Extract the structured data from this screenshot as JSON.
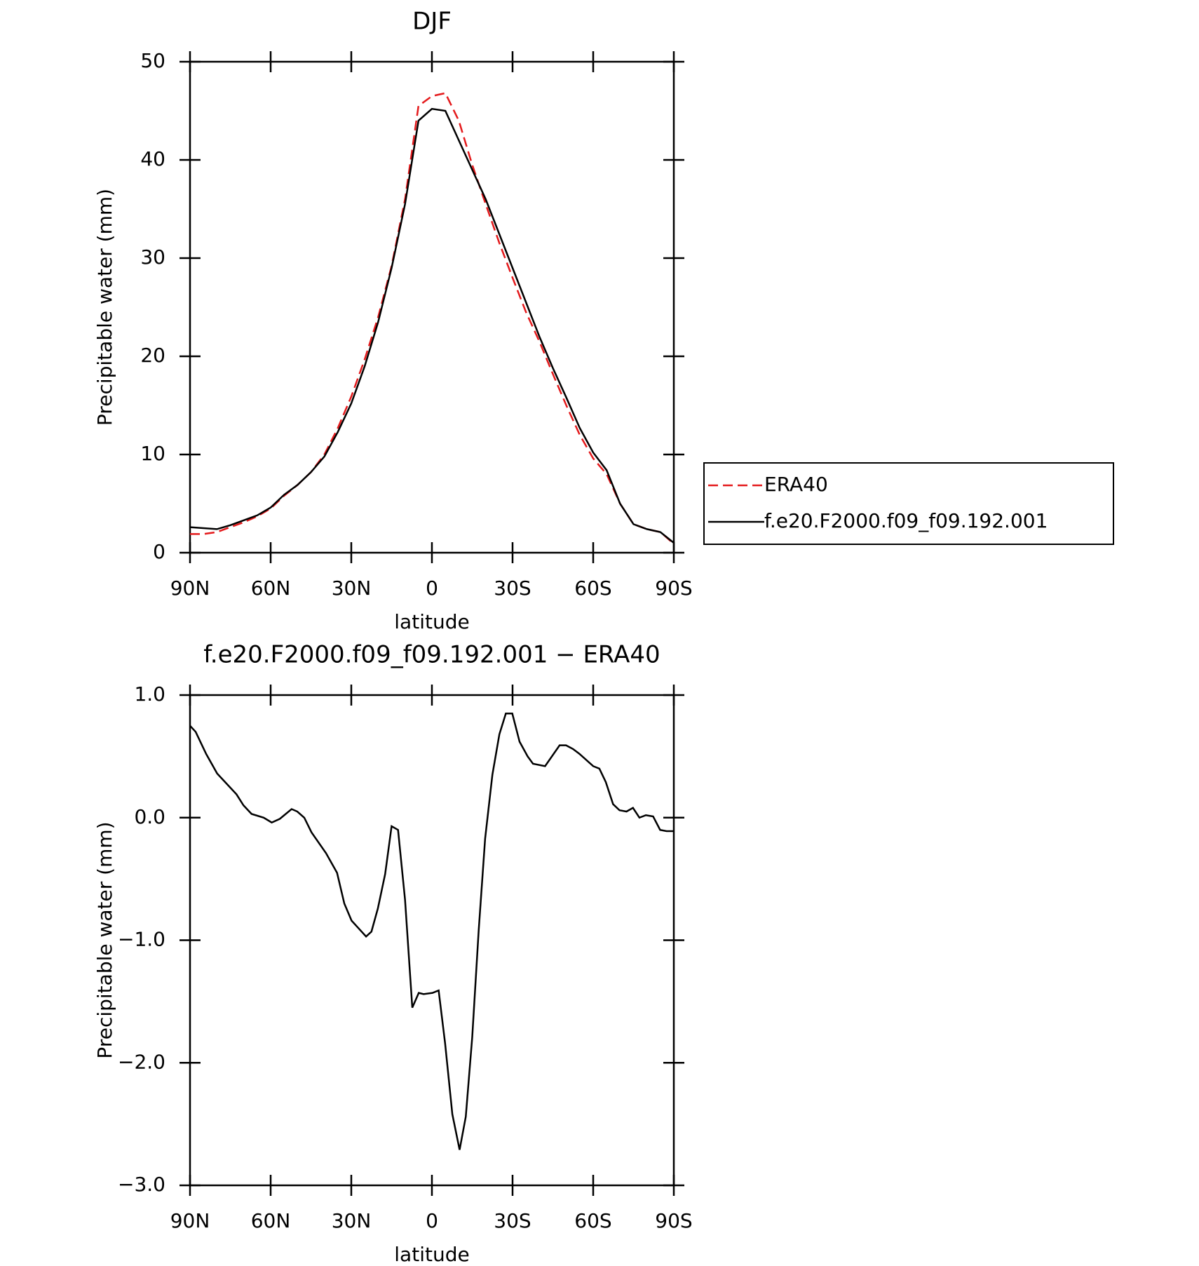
{
  "chart_data": [
    {
      "type": "line",
      "title": "DJF",
      "x_label": "latitude",
      "y_label": "Precipitable water (mm)",
      "xlim": [
        90,
        -90
      ],
      "xticks": [
        {
          "value": 90,
          "label": "90N"
        },
        {
          "value": 60,
          "label": "60N"
        },
        {
          "value": 30,
          "label": "30N"
        },
        0,
        {
          "value": -30,
          "label": "30S"
        },
        {
          "value": -60,
          "label": "60S"
        },
        {
          "value": -90,
          "label": "90S"
        }
      ],
      "ylim": [
        0,
        50
      ],
      "yticks": [
        0,
        10,
        20,
        30,
        40,
        50
      ],
      "legend": "right",
      "x": [
        90,
        85,
        80,
        75,
        70,
        65,
        60,
        55,
        50,
        45,
        40,
        35,
        30,
        25,
        20,
        15,
        10,
        5,
        0,
        -5,
        -10,
        -15,
        -20,
        -25,
        -30,
        -35,
        -40,
        -45,
        -50,
        -55,
        -60,
        -65,
        -70,
        -75,
        -80,
        -85,
        -90
      ],
      "series": [
        {
          "name": "ERA40",
          "color": "#e41a1c",
          "line_style": "dashed",
          "values": [
            1.9,
            1.9,
            2.1,
            2.6,
            3.1,
            3.7,
            4.5,
            5.8,
            6.9,
            8.2,
            10,
            12.7,
            15.9,
            19.7,
            24,
            29.2,
            36,
            45.5,
            46.5,
            46.8,
            44,
            39.5,
            35.5,
            31.6,
            28,
            24.5,
            21.5,
            18.2,
            15,
            12,
            9.6,
            8,
            5,
            2.9,
            2.4,
            2.1,
            0.9
          ]
        },
        {
          "name": "f.e20.F2000.f09_f09.192.001",
          "color": "#000000",
          "line_style": "solid",
          "values": [
            2.6,
            2.5,
            2.4,
            2.8,
            3.3,
            3.8,
            4.6,
            5.9,
            6.9,
            8.2,
            9.8,
            12.3,
            15.2,
            19,
            23.5,
            29,
            35.5,
            44,
            45.2,
            45,
            42,
            39,
            36,
            32.5,
            29,
            25.5,
            22,
            18.8,
            15.8,
            12.7,
            10.2,
            8.4,
            5,
            2.9,
            2.4,
            2.1,
            1
          ]
        }
      ]
    },
    {
      "type": "line",
      "title": "f.e20.F2000.f09_f09.192.001 − ERA40",
      "x_label": "latitude",
      "y_label": "Precipitable water (mm)",
      "xlim": [
        90,
        -90
      ],
      "xticks": [
        {
          "value": 90,
          "label": "90N"
        },
        {
          "value": 60,
          "label": "60N"
        },
        {
          "value": 30,
          "label": "30N"
        },
        0,
        {
          "value": -30,
          "label": "30S"
        },
        {
          "value": -60,
          "label": "60S"
        },
        {
          "value": -90,
          "label": "90S"
        }
      ],
      "ylim": [
        -3,
        1
      ],
      "yticks": [
        {
          "value": 1,
          "label": "1.0"
        },
        {
          "value": 0,
          "label": "0.0"
        },
        {
          "value": -1,
          "label": "−1.0"
        },
        {
          "value": -2,
          "label": "−2.0"
        },
        {
          "value": -3,
          "label": "−3.0"
        }
      ],
      "x": [
        90,
        87.9,
        84,
        79.9,
        72.7,
        70.1,
        67.1,
        62.6,
        59.6,
        56.6,
        52.2,
        50.1,
        47.5,
        44.8,
        39.4,
        35.3,
        32.6,
        29.9,
        24.5,
        22.5,
        20.1,
        17.4,
        15,
        12.6,
        10,
        7.3,
        4.9,
        3.1,
        -0.2,
        -2.5,
        -4.9,
        -7.6,
        -10.3,
        -12.6,
        -15,
        -17.4,
        -19.8,
        -22.5,
        -25.1,
        -27.5,
        -29.9,
        -32.6,
        -35.6,
        -37.6,
        -42.1,
        -47.5,
        -49.9,
        -52.5,
        -54.9,
        -60,
        -62.3,
        -64.7,
        -67.4,
        -69.8,
        -72.4,
        -74.8,
        -77.2,
        -79.6,
        -82.3,
        -84.9,
        -87.3,
        -90
      ],
      "series": [
        {
          "color": "#000000",
          "line_style": "solid",
          "values": [
            0.75,
            0.7,
            0.52,
            0.36,
            0.19,
            0.1,
            0.03,
            0,
            -0.04,
            -0.01,
            0.07,
            0.05,
            0,
            -0.12,
            -0.29,
            -0.45,
            -0.7,
            -0.84,
            -0.97,
            -0.93,
            -0.74,
            -0.46,
            -0.07,
            -0.1,
            -0.67,
            -1.55,
            -1.43,
            -1.44,
            -1.43,
            -1.41,
            -1.84,
            -2.42,
            -2.71,
            -2.44,
            -1.79,
            -0.92,
            -0.17,
            0.35,
            0.68,
            0.85,
            0.85,
            0.62,
            0.5,
            0.44,
            0.42,
            0.59,
            0.59,
            0.56,
            0.52,
            0.42,
            0.4,
            0.29,
            0.11,
            0.06,
            0.05,
            0.08,
            0,
            0.02,
            0.01,
            -0.1,
            -0.11,
            -0.11
          ]
        }
      ]
    }
  ]
}
